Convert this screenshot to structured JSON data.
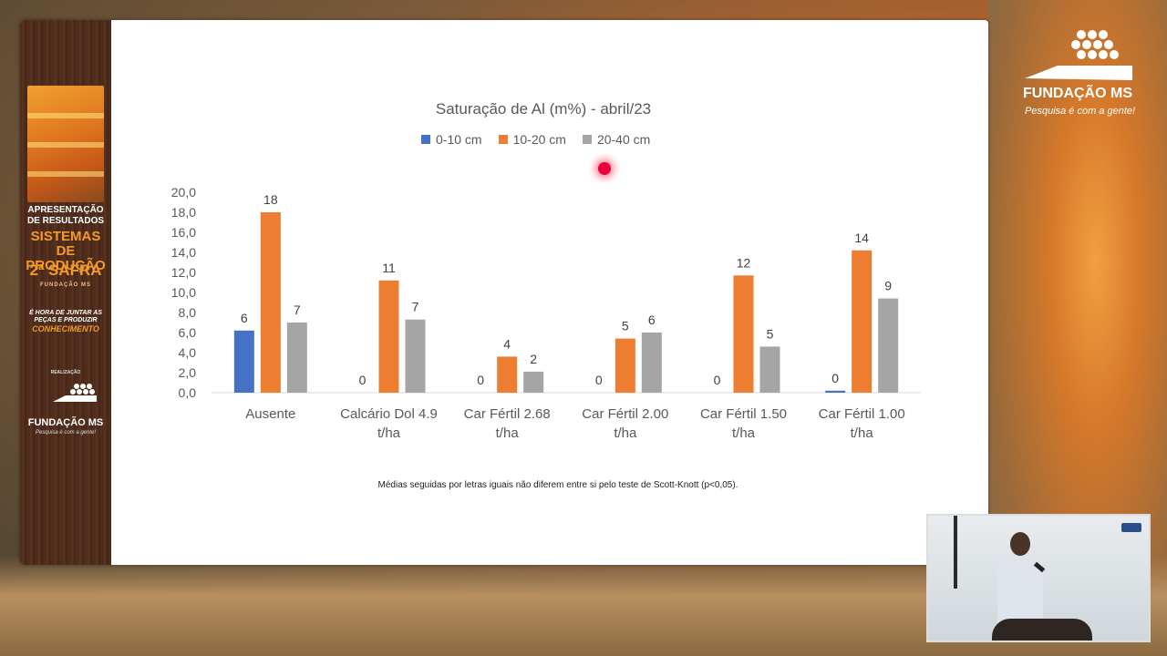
{
  "sidebar": {
    "title1": "APRESENTAÇÃO DE RESULTADOS",
    "title2": "SISTEMAS DE PRODUÇÃO",
    "title3": "2ª SAFRA",
    "subtitle": "FUNDAÇÃO MS",
    "slogan": "É HORA DE JUNTAR AS PEÇAS E PRODUZIR",
    "slogan_highlight": "CONHECIMENTO",
    "realizacao": "REALIZAÇÃO",
    "logo_text": "FUNDAÇÃO MS",
    "logo_tagline": "Pesquisa é com a gente!"
  },
  "brand": {
    "name": "FUNDAÇÃO MS",
    "tagline": "Pesquisa é com a gente!"
  },
  "footnote": "Médias seguidas por letras iguais não diferem entre si pelo teste de Scott-Knott (p<0,05).",
  "chart_data": {
    "type": "bar",
    "title": "Saturação de Al (m%) - abril/23",
    "categories": [
      "Ausente",
      "Calcário Dol 4.9 t/ha",
      "Car Fértil 2.68 t/ha",
      "Car Fértil 2.00 t/ha",
      "Car Fértil 1.50 t/ha",
      "Car Fértil 1.00 t/ha"
    ],
    "category_lines": [
      [
        "Ausente"
      ],
      [
        "Calcário Dol 4.9",
        "t/ha"
      ],
      [
        "Car Fértil 2.68",
        "t/ha"
      ],
      [
        "Car Fértil 2.00",
        "t/ha"
      ],
      [
        "Car Fértil 1.50",
        "t/ha"
      ],
      [
        "Car Fértil 1.00",
        "t/ha"
      ]
    ],
    "series": [
      {
        "name": "0-10 cm",
        "color": "#4472c4",
        "values": [
          6.2,
          0,
          0,
          0,
          0,
          0.2
        ],
        "labels": [
          "6",
          "0",
          "0",
          "0",
          "0",
          "0"
        ]
      },
      {
        "name": "10-20 cm",
        "color": "#ed7d31",
        "values": [
          18.0,
          11.2,
          3.6,
          5.4,
          11.7,
          14.2
        ],
        "labels": [
          "18",
          "11",
          "4",
          "5",
          "12",
          "14"
        ]
      },
      {
        "name": "20-40 cm",
        "color": "#a5a5a5",
        "values": [
          7.0,
          7.3,
          2.1,
          6.0,
          4.6,
          9.4
        ],
        "labels": [
          "7",
          "7",
          "2",
          "6",
          "5",
          "9"
        ]
      }
    ],
    "ylim": [
      0,
      20
    ],
    "yticks": [
      "0,0",
      "2,0",
      "4,0",
      "6,0",
      "8,0",
      "10,0",
      "12,0",
      "14,0",
      "16,0",
      "18,0",
      "20,0"
    ],
    "grid": false,
    "legend": "top"
  }
}
